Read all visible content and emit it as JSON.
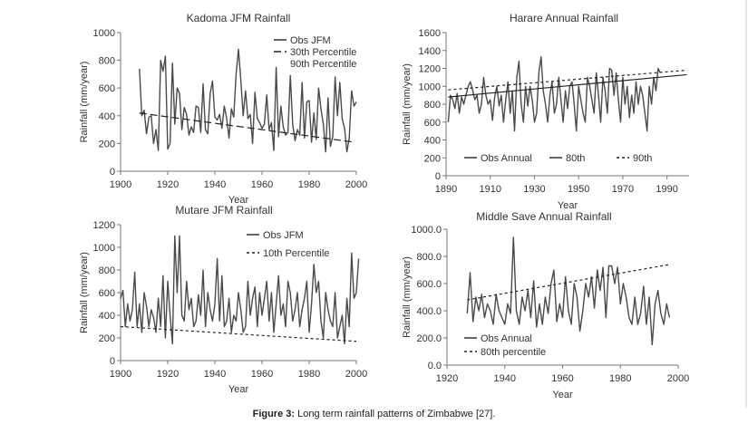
{
  "caption": {
    "label": "Figure 3:",
    "text": "Long term rainfall patterns of Zimbabwe [27]."
  },
  "colors": {
    "series": "#4a4a4a",
    "axis": "#777777",
    "text": "#333333"
  },
  "chart_data": [
    {
      "id": "kadoma",
      "type": "line",
      "title": "Kadoma JFM Rainfall",
      "xlabel": "Year",
      "ylabel": "Rainfall (mm/year)",
      "xlim": [
        1900,
        2000
      ],
      "ylim": [
        0,
        1000
      ],
      "xticks": [
        1900,
        1920,
        1940,
        1960,
        1980,
        2000
      ],
      "yticks": [
        0,
        200,
        400,
        600,
        800,
        1000
      ],
      "ytick_labels": [
        "0",
        "200",
        "400",
        "600",
        "800",
        "1000"
      ],
      "legend": [
        "Obs JFM",
        "30th Percentile",
        "90th Percentile"
      ],
      "legend_position": "top-right",
      "x_start": 1908,
      "values": [
        740,
        400,
        440,
        270,
        390,
        400,
        200,
        300,
        150,
        800,
        720,
        830,
        160,
        200,
        780,
        340,
        600,
        560,
        300,
        460,
        410,
        260,
        320,
        280,
        470,
        460,
        280,
        630,
        300,
        270,
        560,
        650,
        390,
        370,
        410,
        310,
        470,
        380,
        240,
        450,
        390,
        700,
        880,
        660,
        400,
        580,
        380,
        410,
        200,
        570,
        380,
        350,
        310,
        340,
        550,
        300,
        350,
        150,
        750,
        250,
        470,
        320,
        260,
        280,
        690,
        340,
        220,
        300,
        260,
        640,
        240,
        500,
        510,
        210,
        420,
        230,
        600,
        450,
        340,
        140,
        530,
        180,
        250,
        680,
        400,
        640,
        380,
        310,
        140,
        240,
        580,
        470,
        500
      ],
      "trend": {
        "name": "30th Percentile",
        "x0": 1908,
        "y0": 420,
        "x1": 1999,
        "y1": 210,
        "style": "dashed"
      }
    },
    {
      "id": "harare",
      "type": "line",
      "title": "Harare Annual Rainfall",
      "xlabel": "Year",
      "ylabel": "Rainfall (mm/year)",
      "xlim": [
        1890,
        2000
      ],
      "ylim": [
        0,
        1600
      ],
      "xticks": [
        1890,
        1910,
        1930,
        1950,
        1970,
        1990
      ],
      "yticks": [
        0,
        200,
        400,
        600,
        800,
        1000,
        1200,
        1400,
        1600
      ],
      "ytick_labels": [
        "0",
        "200",
        "400",
        "600",
        "800",
        "1000",
        "1200",
        "1400",
        "1600"
      ],
      "legend": [
        "Obs Annual",
        "80th",
        "90th"
      ],
      "legend_position": "lower-right",
      "x_start": 1891,
      "values": [
        600,
        900,
        850,
        750,
        920,
        700,
        880,
        800,
        900,
        1000,
        1050,
        960,
        850,
        900,
        700,
        800,
        1100,
        900,
        800,
        850,
        620,
        880,
        1000,
        780,
        900,
        600,
        850,
        1050,
        700,
        950,
        500,
        1100,
        1280,
        800,
        600,
        1000,
        780,
        1000,
        850,
        600,
        700,
        1150,
        1330,
        950,
        800,
        600,
        900,
        1050,
        700,
        800,
        1100,
        850,
        600,
        950,
        750,
        1000,
        1050,
        800,
        500,
        1000,
        850,
        700,
        600,
        1100,
        1000,
        850,
        700,
        1150,
        900,
        600,
        1100,
        950,
        700,
        1200,
        1180,
        900,
        1150,
        850,
        600,
        1100,
        800,
        1000,
        650,
        900,
        700,
        1050,
        800,
        1000,
        900,
        700,
        500,
        1000,
        800,
        1100,
        950,
        1200,
        1150
      ],
      "trend": {
        "name": "80th",
        "x0": 1891,
        "y0": 880,
        "x1": 1999,
        "y1": 1130,
        "style": "solid"
      },
      "trend2": {
        "name": "90th",
        "x0": 1891,
        "y0": 960,
        "x1": 1999,
        "y1": 1180,
        "style": "dotted"
      }
    },
    {
      "id": "mutare",
      "type": "line",
      "title": "Mutare JFM Rainfall",
      "xlabel": "Year",
      "ylabel": "Rainfall (mm/year)",
      "xlim": [
        1900,
        2000
      ],
      "ylim": [
        0,
        1200
      ],
      "xticks": [
        1900,
        1920,
        1940,
        1960,
        1980,
        2000
      ],
      "yticks": [
        0,
        200,
        400,
        600,
        800,
        1000,
        1200
      ],
      "ytick_labels": [
        "0",
        "200",
        "400",
        "600",
        "800",
        "1000",
        "1200"
      ],
      "legend": [
        "Obs JFM",
        "10th Percentile"
      ],
      "legend_position": "top-right",
      "x_start": 1900,
      "values": [
        550,
        620,
        300,
        500,
        350,
        450,
        780,
        300,
        500,
        250,
        600,
        480,
        300,
        450,
        380,
        250,
        550,
        300,
        750,
        200,
        700,
        400,
        150,
        1100,
        600,
        1100,
        400,
        350,
        700,
        450,
        550,
        300,
        350,
        580,
        400,
        800,
        300,
        600,
        450,
        350,
        500,
        900,
        350,
        750,
        300,
        350,
        550,
        250,
        400,
        350,
        600,
        450,
        250,
        300,
        700,
        400,
        550,
        650,
        300,
        600,
        400,
        550,
        700,
        350,
        600,
        250,
        500,
        750,
        400,
        500,
        300,
        700,
        600,
        350,
        450,
        600,
        300,
        450,
        550,
        700,
        250,
        500,
        850,
        600,
        700,
        350,
        200,
        600,
        450,
        350,
        300,
        600,
        200,
        300,
        400,
        150,
        550,
        300,
        950,
        550,
        600,
        900
      ],
      "trend": {
        "name": "10th Percentile",
        "x0": 1900,
        "y0": 300,
        "x1": 2000,
        "y1": 170,
        "style": "dotted"
      }
    },
    {
      "id": "middle-save",
      "type": "line",
      "title": "Middle Save Annual Rainfall",
      "xlabel": "Year",
      "ylabel": "Rainfall (mm/year)",
      "xlim": [
        1920,
        2000
      ],
      "ylim": [
        0,
        1000
      ],
      "xticks": [
        1920,
        1940,
        1960,
        1980,
        2000
      ],
      "yticks": [
        0,
        200,
        400,
        600,
        800,
        1000
      ],
      "ytick_labels": [
        "0.0",
        "200.0",
        "400.0",
        "600.0",
        "800.0",
        "1000.0"
      ],
      "legend": [
        "Obs Annual",
        "80th percentile"
      ],
      "legend_position": "bottom-left",
      "x_start": 1927,
      "values": [
        380,
        680,
        320,
        500,
        400,
        520,
        350,
        450,
        400,
        300,
        520,
        400,
        350,
        300,
        450,
        380,
        940,
        400,
        300,
        500,
        400,
        550,
        350,
        620,
        280,
        450,
        300,
        500,
        380,
        600,
        700,
        320,
        450,
        350,
        650,
        400,
        300,
        600,
        500,
        250,
        400,
        600,
        500,
        650,
        420,
        700,
        550,
        720,
        350,
        730,
        730,
        600,
        720,
        450,
        600,
        500,
        350,
        300,
        500,
        300,
        380,
        580,
        300,
        500,
        150,
        450,
        550,
        380,
        300,
        450,
        350
      ],
      "trend": {
        "name": "80th percentile",
        "x0": 1927,
        "y0": 480,
        "x1": 1997,
        "y1": 740,
        "style": "dotted"
      }
    }
  ]
}
